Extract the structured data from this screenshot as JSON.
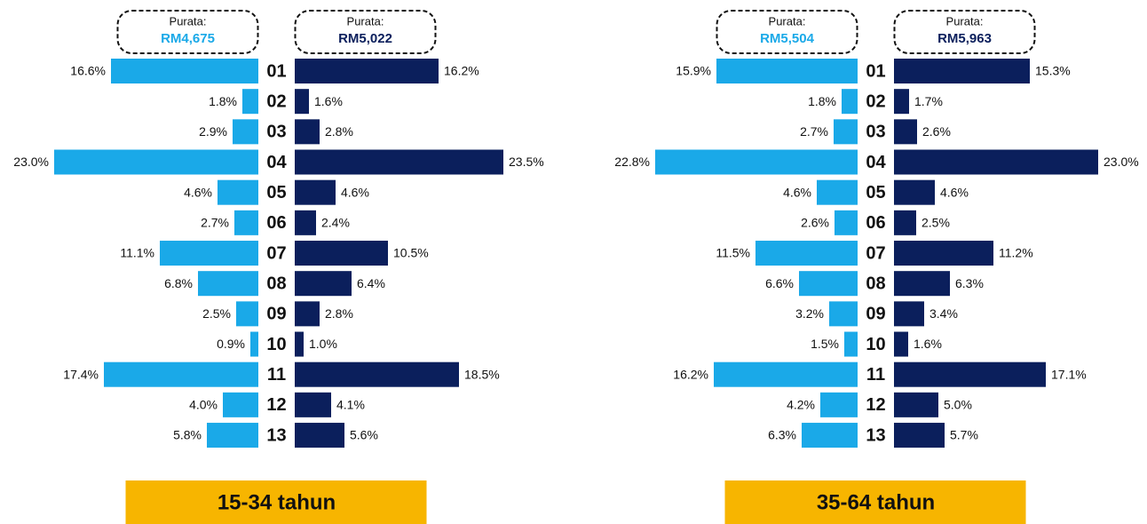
{
  "chart_data": [
    {
      "type": "butterfly",
      "categories": [
        "01",
        "02",
        "03",
        "04",
        "05",
        "06",
        "07",
        "08",
        "09",
        "10",
        "11",
        "12",
        "13"
      ],
      "footer": "15-34 tahun",
      "series": [
        {
          "color": "#1aa9e8",
          "callout": {
            "label": "Purata:",
            "value": "RM4,675"
          },
          "values": [
            16.6,
            1.8,
            2.9,
            23.0,
            4.6,
            2.7,
            11.1,
            6.8,
            2.5,
            0.9,
            17.4,
            4.0,
            5.8
          ],
          "value_labels": [
            "16.6%",
            "1.8%",
            "2.9%",
            "23.0%",
            "4.6%",
            "2.7%",
            "11.1%",
            "6.8%",
            "2.5%",
            "0.9%",
            "17.4%",
            "4.0%",
            "5.8%"
          ]
        },
        {
          "color": "#0b1f5c",
          "callout": {
            "label": "Purata:",
            "value": "RM5,022"
          },
          "values": [
            16.2,
            1.6,
            2.8,
            23.5,
            4.6,
            2.4,
            10.5,
            6.4,
            2.8,
            1.0,
            18.5,
            4.1,
            5.6
          ],
          "value_labels": [
            "16.2%",
            "1.6%",
            "2.8%",
            "23.5%",
            "4.6%",
            "2.4%",
            "10.5%",
            "6.4%",
            "2.8%",
            "1.0%",
            "18.5%",
            "4.1%",
            "5.6%"
          ]
        }
      ]
    },
    {
      "type": "butterfly",
      "categories": [
        "01",
        "02",
        "03",
        "04",
        "05",
        "06",
        "07",
        "08",
        "09",
        "10",
        "11",
        "12",
        "13"
      ],
      "footer": "35-64 tahun",
      "series": [
        {
          "color": "#1aa9e8",
          "callout": {
            "label": "Purata:",
            "value": "RM5,504"
          },
          "values": [
            15.9,
            1.8,
            2.7,
            22.8,
            4.6,
            2.6,
            11.5,
            6.6,
            3.2,
            1.5,
            16.2,
            4.2,
            6.3
          ],
          "value_labels": [
            "15.9%",
            "1.8%",
            "2.7%",
            "22.8%",
            "4.6%",
            "2.6%",
            "11.5%",
            "6.6%",
            "3.2%",
            "1.5%",
            "16.2%",
            "4.2%",
            "6.3%"
          ]
        },
        {
          "color": "#0b1f5c",
          "callout": {
            "label": "Purata:",
            "value": "RM5,963"
          },
          "values": [
            15.3,
            1.7,
            2.6,
            23.0,
            4.6,
            2.5,
            11.2,
            6.3,
            3.4,
            1.6,
            17.1,
            5.0,
            5.7
          ],
          "value_labels": [
            "15.3%",
            "1.7%",
            "2.6%",
            "23.0%",
            "4.6%",
            "2.5%",
            "11.2%",
            "6.3%",
            "3.4%",
            "1.6%",
            "17.1%",
            "5.0%",
            "5.7%"
          ]
        }
      ]
    }
  ]
}
